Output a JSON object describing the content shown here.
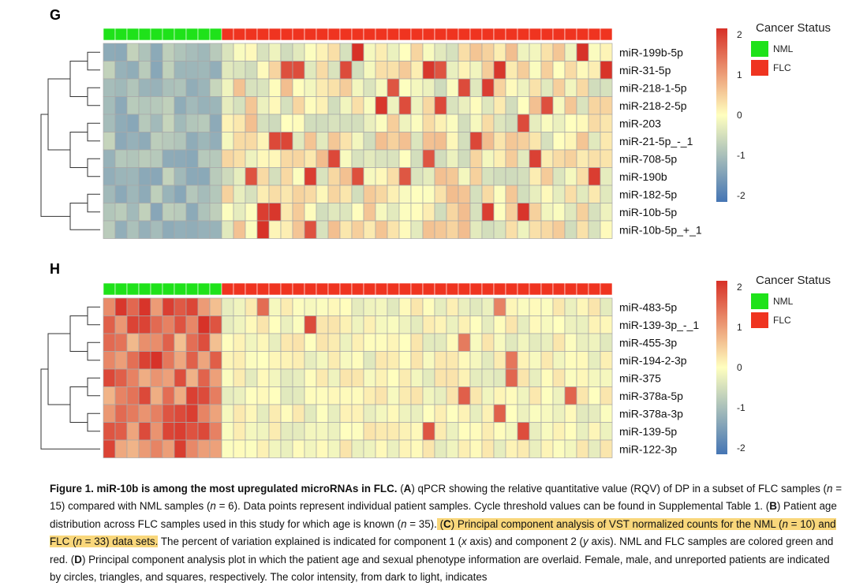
{
  "panels": [
    {
      "letter": "G",
      "legend_title": "Cancer Status",
      "legend_items": [
        {
          "label": "NML",
          "color": "#1fe21a"
        },
        {
          "label": "FLC",
          "color": "#ef3420"
        }
      ],
      "scale_labels": [
        "2",
        "1",
        "0",
        "-1",
        "-2"
      ],
      "rows": [
        "miR-199b-5p",
        "miR-31-5p",
        "miR-218-1-5p",
        "miR-218-2-5p",
        "miR-203",
        "miR-21-5p_-_1",
        "miR-708-5p",
        "miR-190b",
        "miR-182-5p",
        "miR-10b-5p",
        "miR-10b-5p_+_1"
      ],
      "n_nml": 10,
      "n_flc": 33
    },
    {
      "letter": "H",
      "legend_title": "Cancer Status",
      "legend_items": [
        {
          "label": "NML",
          "color": "#1fe21a"
        },
        {
          "label": "FLC",
          "color": "#ef3420"
        }
      ],
      "scale_labels": [
        "2",
        "1",
        "0",
        "-1",
        "-2"
      ],
      "rows": [
        "miR-483-5p",
        "miR-139-3p_-_1",
        "miR-455-3p",
        "miR-194-2-3p",
        "miR-375",
        "miR-378a-5p",
        "miR-378a-3p",
        "miR-139-5p",
        "miR-122-3p"
      ],
      "n_nml": 10,
      "n_flc": 33
    }
  ],
  "colors": {
    "nml": "#1fe21a",
    "flc": "#ef3420",
    "highlight": "#f9d77b",
    "scale_top": "#d73027",
    "scale_mid": "#ffffbf",
    "scale_bottom": "#4575b4"
  },
  "caption": {
    "title": "Figure 1. miR-10b is among the most upregulated microRNAs in FLC.",
    "text_a1": " (",
    "label_a": "A",
    "text_a2": ") qPCR showing the relative quantitative value (RQV) of DP in a subset of FLC samples (",
    "n1_var": "n",
    "n1_val": " = 15) compared with NML samples (",
    "n2_var": "n",
    "n2_val": " = 6). Data points represent individual patient samples. Cycle threshold values can be found in Supplemental Table 1. (",
    "label_b": "B",
    "text_b": ") Patient age distribution across FLC samples used in this study for which age is known (",
    "n3_var": "n",
    "n3_val": " = 35).",
    "hl_c1": " (",
    "label_c": "C",
    "hl_c2": ") Principal component analysis of VST normalized counts for the NML (",
    "n4_var": "n",
    "n4_val": " = 10) and FLC (",
    "n5_var": "n",
    "n5_val": " = 33) data sets.",
    "text_c": " The percent of variation explained is indicated for component 1 (",
    "x_axis": "x",
    "axis_word_1": " axis) and component 2 (",
    "y_axis": "y",
    "text_c2": " axis). NML and FLC samples are colored green and red. (",
    "label_d": "D",
    "text_d": ") Principal component analysis plot in which the patient age and sexual phenotype information are overlaid. Female, male, and unreported patients are indicated by circles, triangles, and squares, respectively. The color intensity, from dark to light, indicates"
  }
}
